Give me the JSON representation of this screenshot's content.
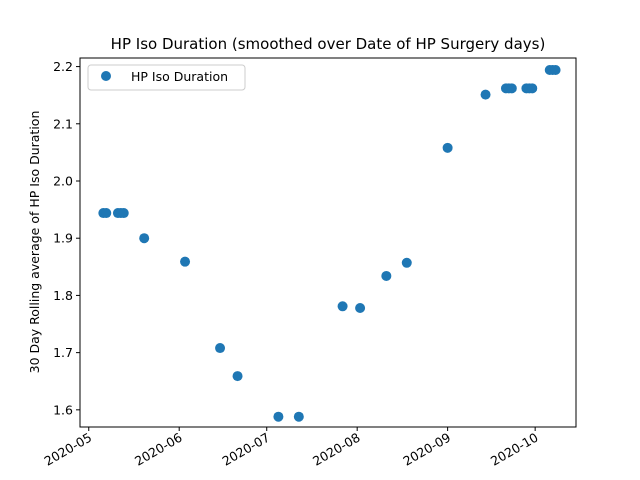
{
  "chart_data": {
    "type": "scatter",
    "title": "HP Iso Duration (smoothed over Date of HP Surgery days)",
    "xlabel": "",
    "ylabel": "30 Day Rolling average of HP Iso Duration",
    "xlim": [
      "2020-04-28",
      "2020-10-15"
    ],
    "ylim": [
      1.57,
      2.215
    ],
    "x_ticks": [
      "2020-05-01",
      "2020-06-01",
      "2020-07-01",
      "2020-08-01",
      "2020-09-01",
      "2020-10-01"
    ],
    "x_tick_labels": [
      "2020-05",
      "2020-06",
      "2020-07",
      "2020-08",
      "2020-09",
      "2020-10"
    ],
    "y_ticks": [
      1.6,
      1.7,
      1.8,
      1.9,
      2.0,
      2.1,
      2.2
    ],
    "y_tick_labels": [
      "1.6",
      "1.7",
      "1.8",
      "1.9",
      "2.0",
      "2.1",
      "2.2"
    ],
    "legend": {
      "position": "top-left",
      "entries": [
        "HP Iso Duration"
      ]
    },
    "grid": false,
    "color": "#1f77b4",
    "series": [
      {
        "name": "HP Iso Duration",
        "points": [
          {
            "x": "2020-05-06",
            "y": 1.944
          },
          {
            "x": "2020-05-07",
            "y": 1.944
          },
          {
            "x": "2020-05-11",
            "y": 1.944
          },
          {
            "x": "2020-05-12",
            "y": 1.944
          },
          {
            "x": "2020-05-13",
            "y": 1.944
          },
          {
            "x": "2020-05-20",
            "y": 1.9
          },
          {
            "x": "2020-06-03",
            "y": 1.859
          },
          {
            "x": "2020-06-15",
            "y": 1.708
          },
          {
            "x": "2020-06-21",
            "y": 1.659
          },
          {
            "x": "2020-07-05",
            "y": 1.588
          },
          {
            "x": "2020-07-12",
            "y": 1.588
          },
          {
            "x": "2020-07-27",
            "y": 1.781
          },
          {
            "x": "2020-08-02",
            "y": 1.778
          },
          {
            "x": "2020-08-11",
            "y": 1.834
          },
          {
            "x": "2020-08-18",
            "y": 1.857
          },
          {
            "x": "2020-09-01",
            "y": 2.058
          },
          {
            "x": "2020-09-14",
            "y": 2.151
          },
          {
            "x": "2020-09-21",
            "y": 2.162
          },
          {
            "x": "2020-09-22",
            "y": 2.162
          },
          {
            "x": "2020-09-23",
            "y": 2.162
          },
          {
            "x": "2020-09-28",
            "y": 2.162
          },
          {
            "x": "2020-09-29",
            "y": 2.162
          },
          {
            "x": "2020-09-30",
            "y": 2.162
          },
          {
            "x": "2020-10-06",
            "y": 2.194
          },
          {
            "x": "2020-10-07",
            "y": 2.194
          },
          {
            "x": "2020-10-08",
            "y": 2.194
          }
        ]
      }
    ]
  }
}
